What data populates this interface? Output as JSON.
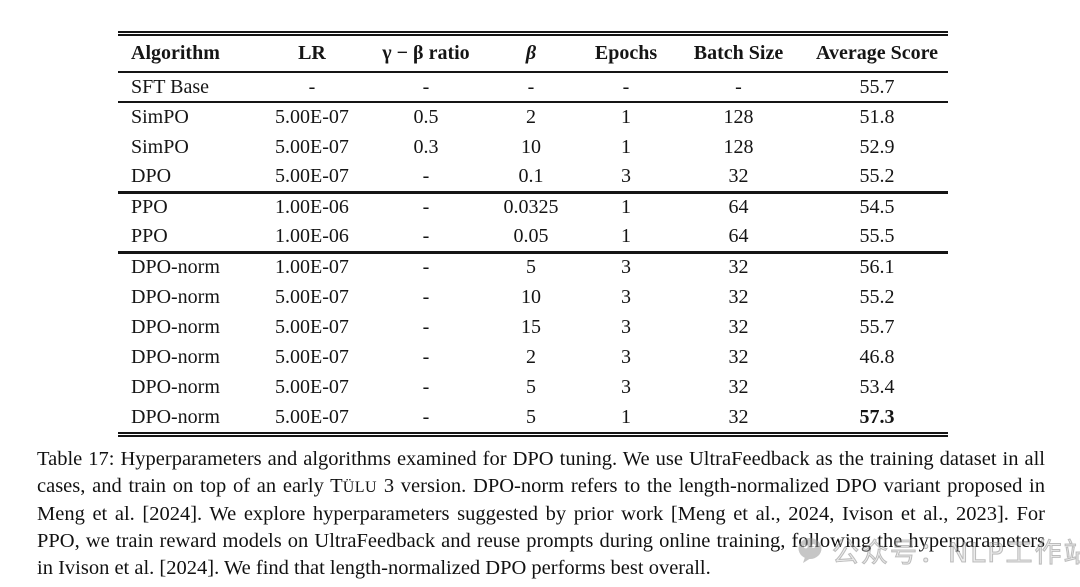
{
  "table": {
    "columns": [
      "Algorithm",
      "LR",
      "γ − β ratio",
      "β",
      "Epochs",
      "Batch Size",
      "Average Score"
    ],
    "groups": [
      [
        [
          "SFT Base",
          "-",
          "-",
          "-",
          "-",
          "-",
          "55.7"
        ]
      ],
      [
        [
          "SimPO",
          "5.00E-07",
          "0.5",
          "2",
          "1",
          "128",
          "51.8"
        ],
        [
          "SimPO",
          "5.00E-07",
          "0.3",
          "10",
          "1",
          "128",
          "52.9"
        ],
        [
          "DPO",
          "5.00E-07",
          "-",
          "0.1",
          "3",
          "32",
          "55.2"
        ]
      ],
      [
        [
          "PPO",
          "1.00E-06",
          "-",
          "0.0325",
          "1",
          "64",
          "54.5"
        ],
        [
          "PPO",
          "1.00E-06",
          "-",
          "0.05",
          "1",
          "64",
          "55.5"
        ]
      ],
      [
        [
          "DPO-norm",
          "1.00E-07",
          "-",
          "5",
          "3",
          "32",
          "56.1"
        ],
        [
          "DPO-norm",
          "5.00E-07",
          "-",
          "10",
          "3",
          "32",
          "55.2"
        ],
        [
          "DPO-norm",
          "5.00E-07",
          "-",
          "15",
          "3",
          "32",
          "55.7"
        ],
        [
          "DPO-norm",
          "5.00E-07",
          "-",
          "2",
          "3",
          "32",
          "46.8"
        ],
        [
          "DPO-norm",
          "5.00E-07",
          "-",
          "5",
          "3",
          "32",
          "53.4"
        ],
        [
          "DPO-norm",
          "5.00E-07",
          "-",
          "5",
          "1",
          "32",
          "57.3"
        ]
      ]
    ],
    "bold_cell": {
      "group": 3,
      "row": 5,
      "col": 6
    }
  },
  "caption": {
    "part1": "Table 17: Hyperparameters and algorithms examined for DPO tuning.  We use UltraFeedback as the training dataset in all cases, and train on top of an early T",
    "smallcaps": "ÜLU",
    "part2": " 3 version. DPO-norm refers to the length-normalized DPO variant proposed in Meng et al. [2024]. We explore hyperparameters suggested by prior work [Meng et al., 2024, Ivison et al., 2023]. For PPO, we train reward models on UltraFeedback and reuse prompts during online training, following the hyperparameters in Ivison et al. [2024]. We find that length-normalized DPO performs best overall."
  },
  "watermark": {
    "icon": "wechat-icon",
    "text": "公众号：NLP工作站"
  },
  "colors": {
    "text": "#151515",
    "rule": "#151515",
    "background": "#ffffff",
    "watermark_gray": "#8f8f8f"
  }
}
